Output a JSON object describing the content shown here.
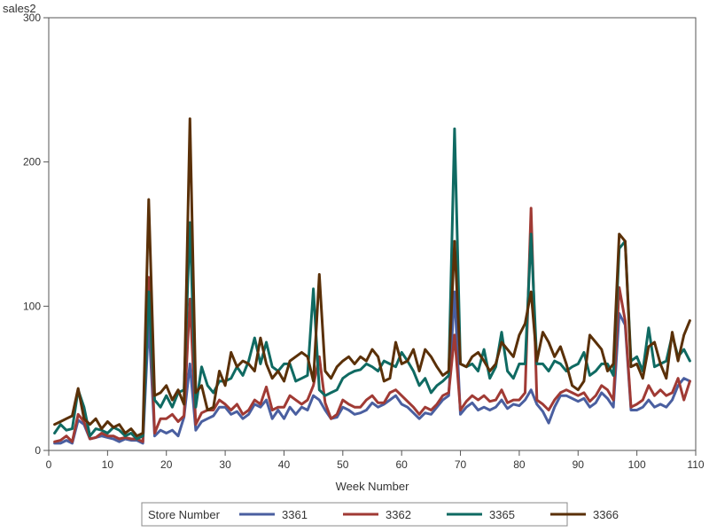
{
  "chart_data": {
    "type": "line",
    "title": "",
    "ylabel": "sales2",
    "xlabel": "Week Number",
    "xlim": [
      0,
      110
    ],
    "ylim": [
      0,
      300
    ],
    "xticks": [
      0,
      10,
      20,
      30,
      40,
      50,
      60,
      70,
      80,
      90,
      100,
      110
    ],
    "yticks": [
      0,
      100,
      200,
      300
    ],
    "grid": false,
    "legend": {
      "title": "Store Number",
      "placement": "bottom-center"
    },
    "x": [
      1,
      2,
      3,
      4,
      5,
      6,
      7,
      8,
      9,
      10,
      11,
      12,
      13,
      14,
      15,
      16,
      17,
      18,
      19,
      20,
      21,
      22,
      23,
      24,
      25,
      26,
      27,
      28,
      29,
      30,
      31,
      32,
      33,
      34,
      35,
      36,
      37,
      38,
      39,
      40,
      41,
      42,
      43,
      44,
      45,
      46,
      47,
      48,
      49,
      50,
      51,
      52,
      53,
      54,
      55,
      56,
      57,
      58,
      59,
      60,
      61,
      62,
      63,
      64,
      65,
      66,
      67,
      68,
      69,
      70,
      71,
      72,
      73,
      74,
      75,
      76,
      77,
      78,
      79,
      80,
      81,
      82,
      83,
      84,
      85,
      86,
      87,
      88,
      89,
      90,
      91,
      92,
      93,
      94,
      95,
      96,
      97,
      98,
      99,
      100,
      101,
      102,
      103,
      104,
      105,
      106,
      107,
      108,
      109
    ],
    "series": [
      {
        "name": "3361",
        "color": "#4a5fa0",
        "values": [
          5,
          5,
          7,
          5,
          21,
          18,
          8,
          9,
          10,
          9,
          8,
          6,
          8,
          7,
          7,
          5,
          90,
          10,
          14,
          12,
          14,
          10,
          23,
          60,
          14,
          20,
          22,
          24,
          30,
          30,
          25,
          27,
          22,
          25,
          32,
          30,
          35,
          22,
          28,
          22,
          30,
          25,
          30,
          28,
          38,
          35,
          28,
          22,
          23,
          30,
          28,
          25,
          26,
          28,
          33,
          30,
          32,
          35,
          38,
          32,
          30,
          26,
          22,
          26,
          25,
          30,
          35,
          38,
          110,
          25,
          30,
          33,
          28,
          30,
          28,
          30,
          35,
          29,
          32,
          31,
          35,
          42,
          32,
          27,
          19,
          30,
          38,
          38,
          36,
          34,
          36,
          30,
          33,
          40,
          36,
          30,
          95,
          87,
          28,
          28,
          30,
          35,
          30,
          32,
          30,
          35,
          45,
          50,
          48
        ]
      },
      {
        "name": "3362",
        "color": "#a03a34",
        "values": [
          6,
          7,
          10,
          6,
          25,
          20,
          8,
          9,
          12,
          10,
          10,
          8,
          9,
          8,
          8,
          6,
          120,
          12,
          22,
          22,
          25,
          20,
          24,
          105,
          18,
          26,
          28,
          28,
          35,
          32,
          28,
          32,
          25,
          28,
          35,
          32,
          44,
          28,
          30,
          30,
          38,
          35,
          32,
          35,
          45,
          65,
          33,
          22,
          25,
          35,
          32,
          30,
          30,
          35,
          38,
          33,
          33,
          40,
          42,
          38,
          34,
          30,
          25,
          30,
          28,
          32,
          38,
          40,
          80,
          28,
          34,
          38,
          35,
          38,
          34,
          35,
          42,
          33,
          35,
          35,
          40,
          168,
          35,
          32,
          28,
          35,
          40,
          42,
          40,
          38,
          40,
          34,
          38,
          45,
          42,
          35,
          113,
          90,
          30,
          32,
          35,
          45,
          38,
          42,
          38,
          40,
          50,
          35,
          48
        ]
      },
      {
        "name": "3365",
        "color": "#0f6a62",
        "values": [
          12,
          18,
          14,
          15,
          42,
          30,
          10,
          15,
          14,
          12,
          16,
          14,
          10,
          12,
          8,
          10,
          110,
          35,
          30,
          38,
          30,
          40,
          42,
          158,
          30,
          58,
          45,
          40,
          48,
          48,
          50,
          58,
          52,
          62,
          78,
          60,
          75,
          58,
          55,
          60,
          60,
          48,
          50,
          52,
          112,
          42,
          38,
          40,
          42,
          50,
          53,
          55,
          56,
          60,
          58,
          55,
          62,
          60,
          58,
          68,
          62,
          55,
          45,
          50,
          40,
          45,
          48,
          52,
          223,
          60,
          58,
          60,
          55,
          70,
          50,
          58,
          82,
          55,
          50,
          60,
          60,
          150,
          60,
          60,
          55,
          62,
          60,
          55,
          58,
          60,
          68,
          52,
          55,
          60,
          60,
          52,
          140,
          145,
          62,
          65,
          55,
          85,
          58,
          60,
          62,
          80,
          65,
          70,
          62
        ]
      },
      {
        "name": "3366",
        "color": "#5a3008",
        "values": [
          18,
          20,
          22,
          24,
          43,
          22,
          18,
          22,
          15,
          20,
          16,
          18,
          12,
          15,
          10,
          12,
          174,
          38,
          40,
          45,
          35,
          42,
          32,
          230,
          40,
          45,
          28,
          30,
          55,
          45,
          68,
          58,
          62,
          60,
          55,
          78,
          60,
          50,
          55,
          48,
          62,
          65,
          68,
          65,
          48,
          122,
          55,
          50,
          58,
          62,
          65,
          60,
          65,
          62,
          70,
          65,
          48,
          50,
          75,
          60,
          62,
          70,
          55,
          70,
          65,
          58,
          52,
          55,
          145,
          60,
          58,
          65,
          68,
          62,
          55,
          60,
          75,
          70,
          65,
          80,
          88,
          110,
          62,
          82,
          75,
          65,
          72,
          60,
          45,
          42,
          48,
          80,
          75,
          70,
          55,
          60,
          150,
          145,
          58,
          60,
          50,
          72,
          75,
          60,
          50,
          82,
          62,
          80,
          90
        ]
      }
    ]
  }
}
